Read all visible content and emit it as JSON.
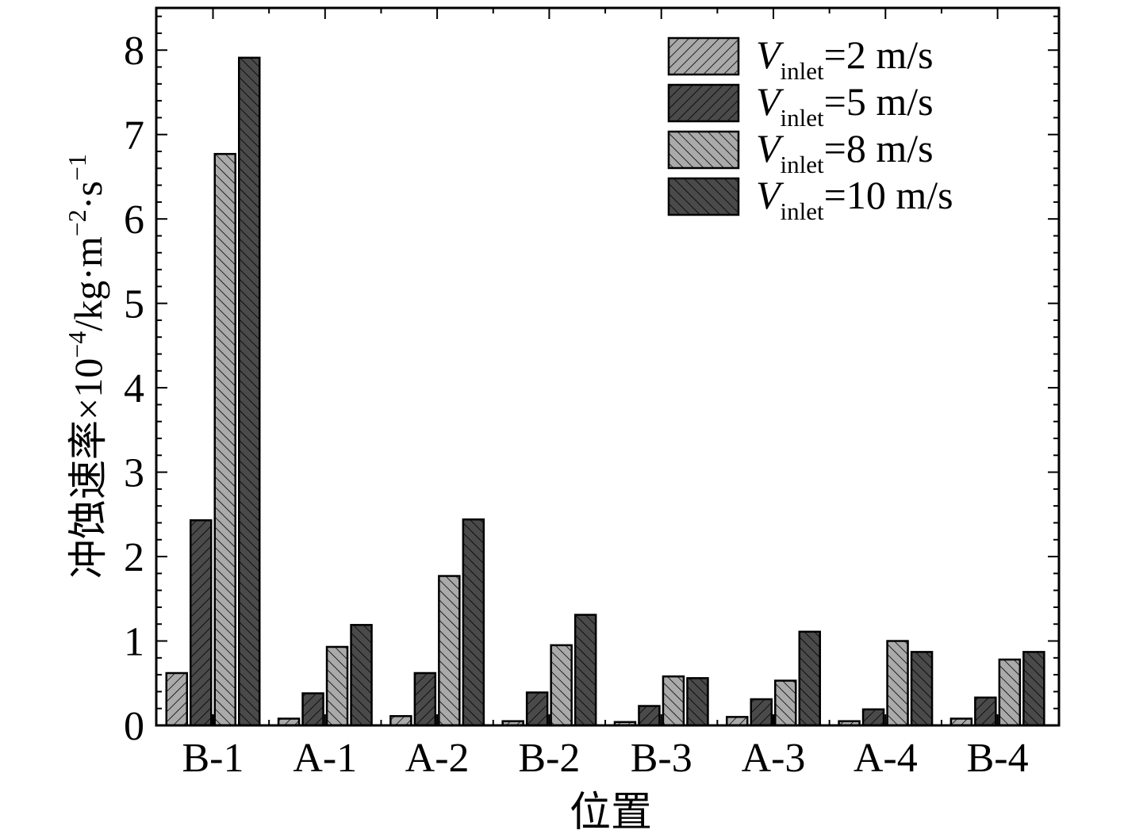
{
  "chart_data": {
    "type": "bar",
    "title": "",
    "xlabel": "位置",
    "ylabel_main": "冲蚀速率×10",
    "ylabel_exp": "−4",
    "ylabel_unit": "/kg·m",
    "ylabel_exp2": "−2",
    "ylabel_unit2": "·s",
    "ylabel_exp3": "−1",
    "ylim": [
      0,
      8.5
    ],
    "yticks": [
      "0",
      "1",
      "2",
      "3",
      "4",
      "5",
      "6",
      "7",
      "8"
    ],
    "categories": [
      "B-1",
      "A-1",
      "A-2",
      "B-2",
      "B-3",
      "A-3",
      "A-4",
      "B-4"
    ],
    "legend_placement": "top-right",
    "legend_var": "V",
    "legend_sub": "inlet",
    "series": [
      {
        "name": "=2 m/s",
        "color": "#aaaaaa",
        "hatch": "forward",
        "values": [
          0.62,
          0.08,
          0.11,
          0.05,
          0.04,
          0.1,
          0.05,
          0.08
        ]
      },
      {
        "name": "=5 m/s",
        "color": "#4a4a4a",
        "hatch": "forward",
        "values": [
          2.43,
          0.38,
          0.62,
          0.39,
          0.23,
          0.31,
          0.19,
          0.33
        ]
      },
      {
        "name": "=8 m/s",
        "color": "#aaaaaa",
        "hatch": "backward",
        "values": [
          6.77,
          0.93,
          1.77,
          0.95,
          0.58,
          0.53,
          1.0,
          0.78
        ]
      },
      {
        "name": "=10 m/s",
        "color": "#4a4a4a",
        "hatch": "backward",
        "values": [
          7.91,
          1.19,
          2.44,
          1.31,
          0.56,
          1.11,
          0.87,
          0.87
        ]
      }
    ]
  }
}
